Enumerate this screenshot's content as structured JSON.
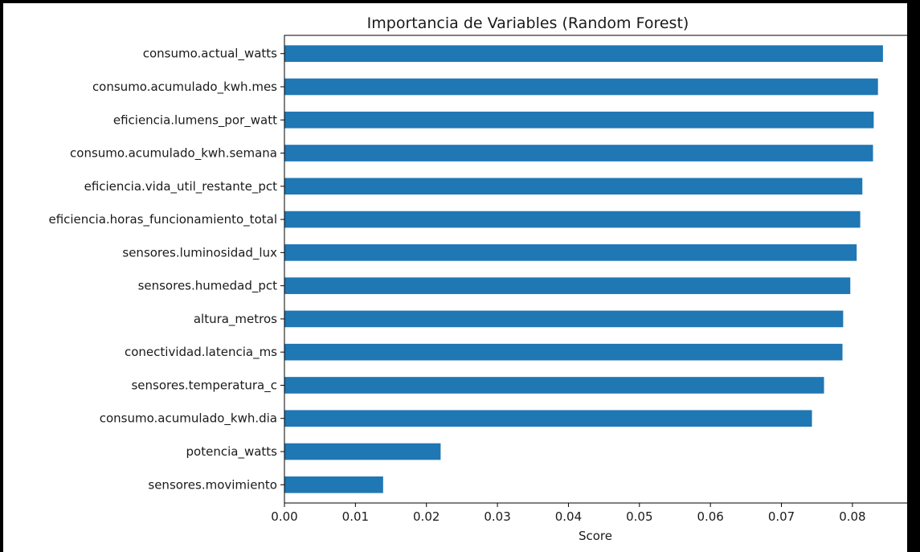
{
  "chart_data": {
    "type": "bar",
    "orientation": "horizontal",
    "title": "Importancia de Variables (Random Forest)",
    "xlabel": "Score",
    "ylabel": "",
    "xlim": [
      0.0,
      0.0885
    ],
    "xticks": [
      "0.00",
      "0.01",
      "0.02",
      "0.03",
      "0.04",
      "0.05",
      "0.06",
      "0.07",
      "0.08"
    ],
    "grid": false,
    "bar_color": "#1f77b4",
    "categories": [
      "consumo.actual_watts",
      "consumo.acumulado_kwh.mes",
      "eficiencia.lumens_por_watt",
      "consumo.acumulado_kwh.semana",
      "eficiencia.vida_util_restante_pct",
      "eficiencia.horas_funcionamiento_total",
      "sensores.luminosidad_lux",
      "sensores.humedad_pct",
      "altura_metros",
      "conectividad.latencia_ms",
      "sensores.temperatura_c",
      "consumo.acumulado_kwh.dia",
      "potencia_watts",
      "sensores.movimiento"
    ],
    "values": [
      0.0843,
      0.0836,
      0.083,
      0.0829,
      0.0814,
      0.0811,
      0.0806,
      0.0797,
      0.0787,
      0.0786,
      0.076,
      0.0743,
      0.022,
      0.0139
    ]
  }
}
